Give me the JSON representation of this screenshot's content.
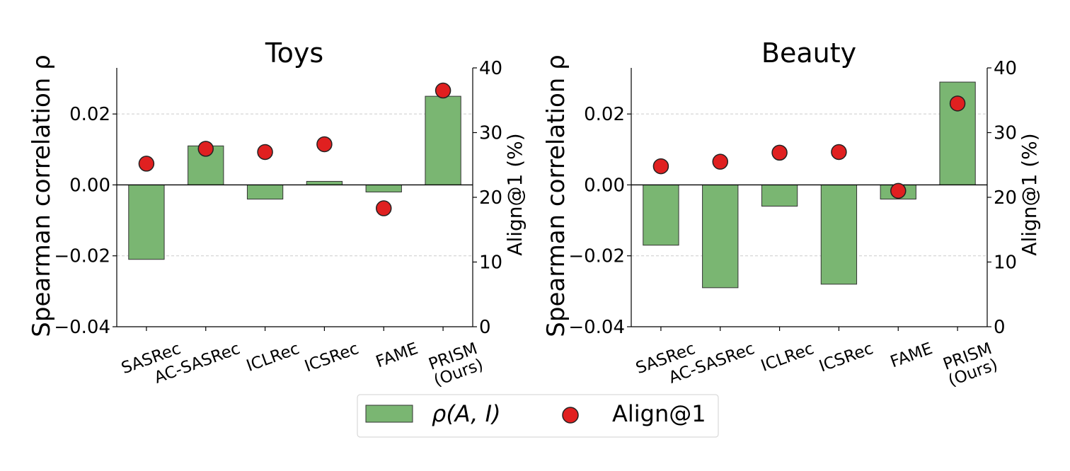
{
  "legend": {
    "bar_label": "ρ(A, I)",
    "dot_label": "Align@1",
    "position": "bottom-center"
  },
  "colors": {
    "bar_fill": "#7ab672",
    "bar_edge": "#333333",
    "dot_fill": "#e02020",
    "dot_edge": "#222222",
    "grid": "#cccccc"
  },
  "chart_data": [
    {
      "type": "bar",
      "title": "Toys",
      "ylabel": "Spearman correlation ρ",
      "y2label": "Align@1 (%)",
      "categories": [
        "SASRec",
        "AC-SASRec",
        "ICLRec",
        "ICSRec",
        "FAME",
        "PRISM\n(Ours)"
      ],
      "ylim": [
        -0.04,
        0.033
      ],
      "yticks": [
        "−0.04",
        "−0.02",
        "0.00",
        "0.02"
      ],
      "ytick_values": [
        -0.04,
        -0.02,
        0.0,
        0.02
      ],
      "y2lim": [
        0,
        40
      ],
      "y2ticks": [
        "0",
        "10",
        "20",
        "30",
        "40"
      ],
      "y2tick_values": [
        0,
        10,
        20,
        30,
        40
      ],
      "grid": "horizontal dashed",
      "series": [
        {
          "name": "ρ(A, I)",
          "kind": "bar",
          "axis": "left",
          "values": [
            -0.021,
            0.011,
            -0.004,
            0.001,
            -0.002,
            0.025
          ]
        },
        {
          "name": "Align@1",
          "kind": "scatter",
          "axis": "right",
          "values": [
            25.2,
            27.5,
            27.0,
            28.2,
            18.3,
            36.5
          ]
        }
      ]
    },
    {
      "type": "bar",
      "title": "Beauty",
      "ylabel": "Spearman correlation ρ",
      "y2label": "Align@1 (%)",
      "categories": [
        "SASRec",
        "AC-SASRec",
        "ICLRec",
        "ICSRec",
        "FAME",
        "PRISM\n(Ours)"
      ],
      "ylim": [
        -0.04,
        0.033
      ],
      "yticks": [
        "−0.04",
        "−0.02",
        "0.00",
        "0.02"
      ],
      "ytick_values": [
        -0.04,
        -0.02,
        0.0,
        0.02
      ],
      "y2lim": [
        0,
        40
      ],
      "y2ticks": [
        "0",
        "10",
        "20",
        "30",
        "40"
      ],
      "y2tick_values": [
        0,
        10,
        20,
        30,
        40
      ],
      "grid": "horizontal dashed",
      "series": [
        {
          "name": "ρ(A, I)",
          "kind": "bar",
          "axis": "left",
          "values": [
            -0.017,
            -0.029,
            -0.006,
            -0.028,
            -0.004,
            0.029
          ]
        },
        {
          "name": "Align@1",
          "kind": "scatter",
          "axis": "right",
          "values": [
            24.8,
            25.5,
            26.9,
            27.0,
            21.0,
            34.5
          ]
        }
      ]
    }
  ]
}
